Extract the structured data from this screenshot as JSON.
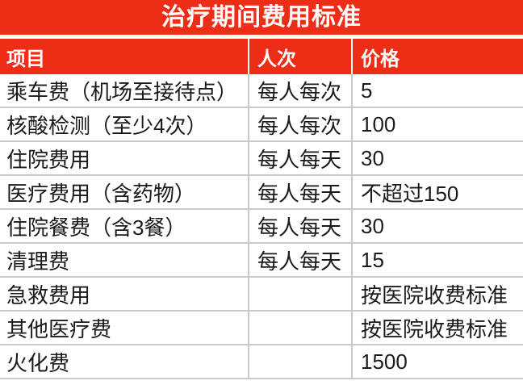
{
  "page_title": "治疗期间费用标准",
  "colors": {
    "accent_red": "#ee2d16",
    "header_text": "#ffffff",
    "body_text": "#1a1a1a",
    "grid_line": "#c9c9c9"
  },
  "table": {
    "headers": [
      "项目",
      "人次",
      "价格"
    ],
    "rows": [
      [
        "乘车费（机场至接待点）",
        "每人每次",
        "5"
      ],
      [
        "核酸检测（至少4次）",
        "每人每次",
        "100"
      ],
      [
        "住院费用",
        "每人每天",
        "30"
      ],
      [
        "医疗费用（含药物）",
        "每人每天",
        "不超过150"
      ],
      [
        "住院餐费（含3餐）",
        "每人每天",
        "30"
      ],
      [
        "清理费",
        "每人每天",
        "15"
      ],
      [
        "急救费用",
        "",
        "按医院收费标准"
      ],
      [
        "其他医疗费",
        "",
        "按医院收费标准"
      ],
      [
        "火化费",
        "",
        "1500"
      ]
    ]
  }
}
